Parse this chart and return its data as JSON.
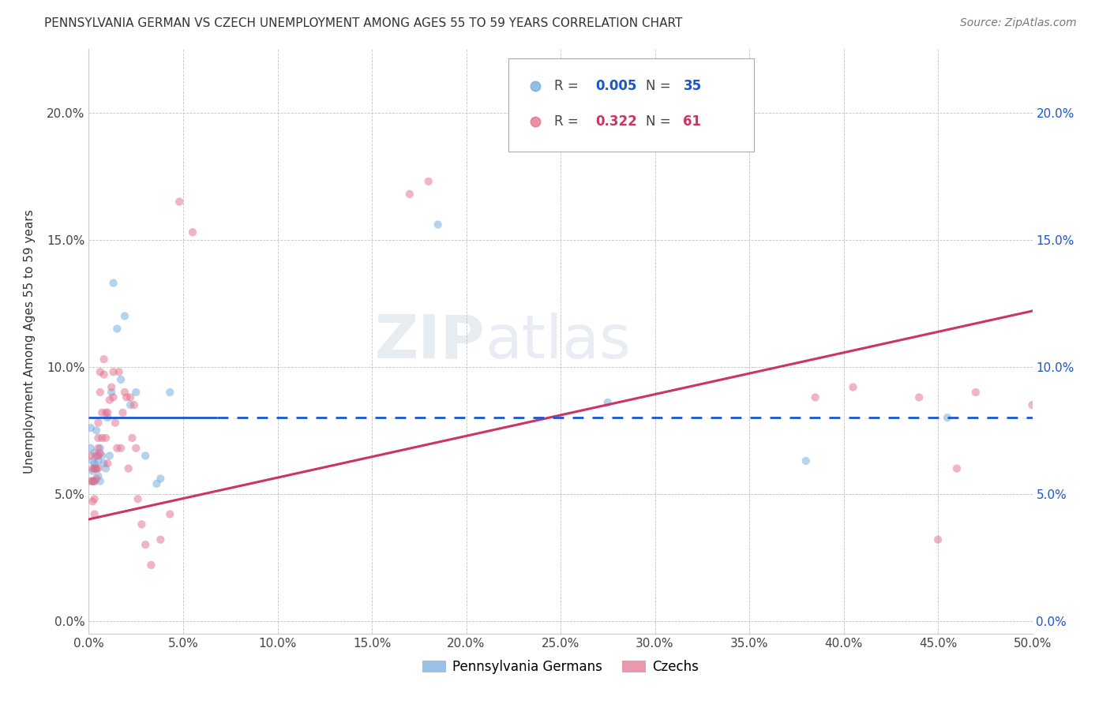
{
  "title": "PENNSYLVANIA GERMAN VS CZECH UNEMPLOYMENT AMONG AGES 55 TO 59 YEARS CORRELATION CHART",
  "source": "Source: ZipAtlas.com",
  "ylabel": "Unemployment Among Ages 55 to 59 years",
  "xlim": [
    0.0,
    0.5
  ],
  "ylim": [
    -0.005,
    0.225
  ],
  "blue_R": 0.005,
  "blue_N": 35,
  "pink_R": 0.322,
  "pink_N": 61,
  "blue_color": "#6fa8dc",
  "pink_color": "#e06c8a",
  "blue_line_color": "#1a56cc",
  "pink_line_color": "#cc3366",
  "watermark_zip": "ZIP",
  "watermark_atlas": "atlas",
  "xticks": [
    0.0,
    0.05,
    0.1,
    0.15,
    0.2,
    0.25,
    0.3,
    0.35,
    0.4,
    0.45,
    0.5
  ],
  "yticks": [
    0.0,
    0.05,
    0.1,
    0.15,
    0.2
  ],
  "marker_size": 55,
  "marker_alpha": 0.5,
  "blue_points_x": [
    0.001,
    0.001,
    0.002,
    0.002,
    0.002,
    0.003,
    0.003,
    0.003,
    0.003,
    0.004,
    0.004,
    0.005,
    0.005,
    0.006,
    0.006,
    0.007,
    0.008,
    0.009,
    0.01,
    0.011,
    0.012,
    0.013,
    0.015,
    0.017,
    0.019,
    0.022,
    0.025,
    0.03,
    0.036,
    0.038,
    0.043,
    0.185,
    0.275,
    0.38,
    0.455
  ],
  "blue_points_y": [
    0.068,
    0.076,
    0.063,
    0.059,
    0.055,
    0.06,
    0.062,
    0.066,
    0.055,
    0.06,
    0.075,
    0.063,
    0.057,
    0.055,
    0.068,
    0.065,
    0.062,
    0.06,
    0.08,
    0.065,
    0.09,
    0.133,
    0.115,
    0.095,
    0.12,
    0.085,
    0.09,
    0.065,
    0.054,
    0.056,
    0.09,
    0.156,
    0.086,
    0.063,
    0.08
  ],
  "pink_points_x": [
    0.001,
    0.001,
    0.002,
    0.002,
    0.002,
    0.003,
    0.003,
    0.003,
    0.003,
    0.004,
    0.004,
    0.004,
    0.005,
    0.005,
    0.005,
    0.005,
    0.005,
    0.006,
    0.006,
    0.006,
    0.007,
    0.007,
    0.008,
    0.008,
    0.009,
    0.009,
    0.01,
    0.01,
    0.011,
    0.012,
    0.013,
    0.013,
    0.014,
    0.015,
    0.016,
    0.017,
    0.018,
    0.019,
    0.02,
    0.021,
    0.022,
    0.023,
    0.024,
    0.025,
    0.026,
    0.028,
    0.03,
    0.033,
    0.038,
    0.043,
    0.048,
    0.055,
    0.17,
    0.18,
    0.385,
    0.405,
    0.44,
    0.45,
    0.46,
    0.47,
    0.5
  ],
  "pink_points_y": [
    0.065,
    0.055,
    0.06,
    0.055,
    0.047,
    0.042,
    0.06,
    0.055,
    0.048,
    0.056,
    0.06,
    0.065,
    0.06,
    0.065,
    0.068,
    0.072,
    0.078,
    0.066,
    0.09,
    0.098,
    0.072,
    0.082,
    0.097,
    0.103,
    0.082,
    0.072,
    0.062,
    0.082,
    0.087,
    0.092,
    0.098,
    0.088,
    0.078,
    0.068,
    0.098,
    0.068,
    0.082,
    0.09,
    0.088,
    0.06,
    0.088,
    0.072,
    0.085,
    0.068,
    0.048,
    0.038,
    0.03,
    0.022,
    0.032,
    0.042,
    0.165,
    0.153,
    0.168,
    0.173,
    0.088,
    0.092,
    0.088,
    0.032,
    0.06,
    0.09,
    0.085
  ],
  "blue_line_y_start": 0.08,
  "blue_line_y_end": 0.08,
  "pink_line_y_start": 0.04,
  "pink_line_y_end": 0.122
}
